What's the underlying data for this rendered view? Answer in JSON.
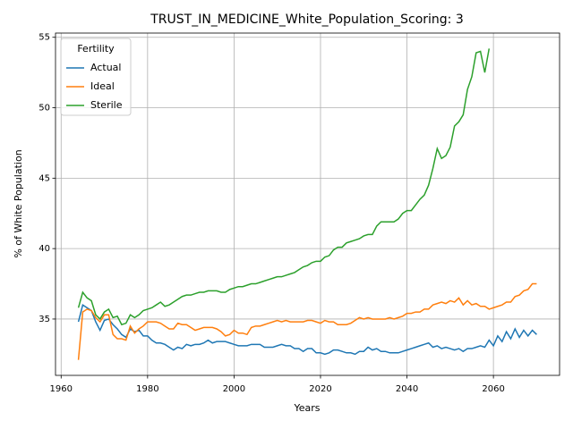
{
  "chart_data": {
    "type": "line",
    "title": "TRUST_IN_MEDICINE_White_Population_Scoring: 3",
    "xlabel": "Years",
    "ylabel": "% of White Population",
    "legend_title": "Fertility",
    "legend": "upper left",
    "grid": true,
    "xlim": [
      1958.7,
      2075.3
    ],
    "ylim": [
      31.0,
      55.3
    ],
    "xticks": [
      1960,
      1980,
      2000,
      2020,
      2040,
      2060
    ],
    "yticks": [
      35,
      40,
      45,
      50,
      55
    ],
    "x": [
      1964,
      1965,
      1966,
      1967,
      1968,
      1969,
      1970,
      1971,
      1972,
      1973,
      1974,
      1975,
      1976,
      1977,
      1978,
      1979,
      1980,
      1981,
      1982,
      1983,
      1984,
      1985,
      1986,
      1987,
      1988,
      1989,
      1990,
      1991,
      1992,
      1993,
      1994,
      1995,
      1996,
      1997,
      1998,
      1999,
      2000,
      2001,
      2002,
      2003,
      2004,
      2005,
      2006,
      2007,
      2008,
      2009,
      2010,
      2011,
      2012,
      2013,
      2014,
      2015,
      2016,
      2017,
      2018,
      2019,
      2020,
      2021,
      2022,
      2023,
      2024,
      2025,
      2026,
      2027,
      2028,
      2029,
      2030,
      2031,
      2032,
      2033,
      2034,
      2035,
      2036,
      2037,
      2038,
      2039,
      2040,
      2041,
      2042,
      2043,
      2044,
      2045,
      2046,
      2047,
      2048,
      2049,
      2050,
      2051,
      2052,
      2053,
      2054,
      2055,
      2056,
      2057,
      2058,
      2059,
      2060,
      2061,
      2062,
      2063,
      2064,
      2065,
      2066,
      2067,
      2068,
      2069,
      2070
    ],
    "series": [
      {
        "name": "Actual",
        "color": "#1f77b4",
        "values": [
          34.8,
          36.0,
          35.8,
          35.6,
          34.8,
          34.2,
          34.9,
          35.0,
          34.6,
          34.3,
          33.9,
          33.7,
          34.3,
          34.1,
          34.2,
          33.8,
          33.8,
          33.5,
          33.3,
          33.3,
          33.2,
          33.0,
          32.8,
          33.0,
          32.9,
          33.2,
          33.1,
          33.2,
          33.2,
          33.3,
          33.5,
          33.3,
          33.4,
          33.4,
          33.4,
          33.3,
          33.2,
          33.1,
          33.1,
          33.1,
          33.2,
          33.2,
          33.2,
          33.0,
          33.0,
          33.0,
          33.1,
          33.2,
          33.1,
          33.1,
          32.9,
          32.9,
          32.7,
          32.9,
          32.9,
          32.6,
          32.6,
          32.5,
          32.6,
          32.8,
          32.8,
          32.7,
          32.6,
          32.6,
          32.5,
          32.7,
          32.7,
          33.0,
          32.8,
          32.9,
          32.7,
          32.7,
          32.6,
          32.6,
          32.6,
          32.7,
          32.8,
          32.9,
          33.0,
          33.1,
          33.2,
          33.3,
          33.0,
          33.1,
          32.9,
          33.0,
          32.9,
          32.8,
          32.9,
          32.7,
          32.9,
          32.9,
          33.0,
          33.1,
          33.0,
          33.5,
          33.1,
          33.8,
          33.4,
          34.1,
          33.6,
          34.3,
          33.7,
          34.2,
          33.8,
          34.2,
          33.9
        ]
      },
      {
        "name": "Ideal",
        "color": "#ff7f0e",
        "values": [
          32.1,
          35.5,
          35.7,
          35.6,
          35.1,
          34.8,
          35.3,
          35.3,
          33.9,
          33.6,
          33.6,
          33.5,
          34.5,
          34.0,
          34.3,
          34.5,
          34.8,
          34.8,
          34.8,
          34.7,
          34.5,
          34.3,
          34.3,
          34.7,
          34.6,
          34.6,
          34.4,
          34.2,
          34.3,
          34.4,
          34.4,
          34.4,
          34.3,
          34.1,
          33.8,
          33.9,
          34.2,
          34.0,
          34.0,
          33.9,
          34.4,
          34.5,
          34.5,
          34.6,
          34.7,
          34.8,
          34.9,
          34.8,
          34.9,
          34.8,
          34.8,
          34.8,
          34.8,
          34.9,
          34.9,
          34.8,
          34.7,
          34.9,
          34.8,
          34.8,
          34.6,
          34.6,
          34.6,
          34.7,
          34.9,
          35.1,
          35.0,
          35.1,
          35.0,
          35.0,
          35.0,
          35.0,
          35.1,
          35.0,
          35.1,
          35.2,
          35.4,
          35.4,
          35.5,
          35.5,
          35.7,
          35.7,
          36.0,
          36.1,
          36.2,
          36.1,
          36.3,
          36.2,
          36.5,
          36.0,
          36.3,
          36.0,
          36.1,
          35.9,
          35.9,
          35.7,
          35.8,
          35.9,
          36.0,
          36.2,
          36.2,
          36.6,
          36.7,
          37.0,
          37.1,
          37.5,
          37.5
        ]
      },
      {
        "name": "Sterile",
        "color": "#2ca02c",
        "values": [
          35.8,
          36.9,
          36.5,
          36.3,
          35.3,
          35.0,
          35.5,
          35.7,
          35.1,
          35.2,
          34.6,
          34.7,
          35.3,
          35.1,
          35.3,
          35.6,
          35.7,
          35.8,
          36.0,
          36.2,
          35.9,
          36.0,
          36.2,
          36.4,
          36.6,
          36.7,
          36.7,
          36.8,
          36.9,
          36.9,
          37.0,
          37.0,
          37.0,
          36.9,
          36.9,
          37.1,
          37.2,
          37.3,
          37.3,
          37.4,
          37.5,
          37.5,
          37.6,
          37.7,
          37.8,
          37.9,
          38.0,
          38.0,
          38.1,
          38.2,
          38.3,
          38.5,
          38.7,
          38.8,
          39.0,
          39.1,
          39.1,
          39.4,
          39.5,
          39.9,
          40.1,
          40.1,
          40.4,
          40.5,
          40.6,
          40.7,
          40.9,
          41.0,
          41.0,
          41.6,
          41.9,
          41.9,
          41.9,
          41.9,
          42.1,
          42.5,
          42.7,
          42.7,
          43.1,
          43.5,
          43.8,
          44.5,
          45.7,
          47.1,
          46.4,
          46.6,
          47.2,
          48.7,
          49.0,
          49.5,
          51.3,
          52.2,
          53.9,
          54.0,
          52.5,
          54.2,
          null,
          null,
          null,
          null,
          null,
          null,
          null,
          null,
          null,
          null,
          null
        ]
      }
    ]
  }
}
